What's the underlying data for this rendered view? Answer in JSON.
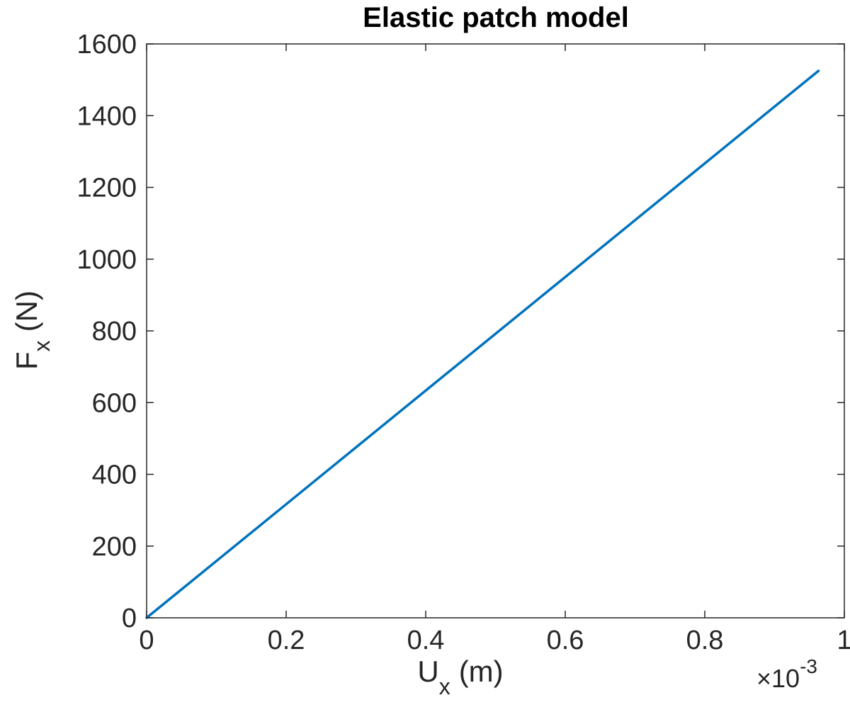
{
  "chart_data": {
    "type": "line",
    "title": "Elastic patch model",
    "xlabel": {
      "main": "U",
      "sub": "x",
      "unit": "(m)"
    },
    "ylabel": {
      "main": "F",
      "sub": "x",
      "unit": "(N)"
    },
    "x_multiplier": {
      "symbol": "×10",
      "exponent": "-3"
    },
    "xlim": [
      0,
      1
    ],
    "ylim": [
      0,
      1600
    ],
    "x_ticks": [
      0,
      0.2,
      0.4,
      0.6,
      0.8,
      1
    ],
    "x_tick_labels": [
      "0",
      "0.2",
      "0.4",
      "0.6",
      "0.8",
      "1"
    ],
    "y_ticks": [
      0,
      200,
      400,
      600,
      800,
      1000,
      1200,
      1400,
      1600
    ],
    "y_tick_labels": [
      "0",
      "200",
      "400",
      "600",
      "800",
      "1000",
      "1200",
      "1400",
      "1600"
    ],
    "grid": false,
    "box": true,
    "series": [
      {
        "x": [
          0,
          0.2,
          0.4,
          0.6,
          0.8,
          0.963
        ],
        "y": [
          0,
          316.7,
          633.5,
          950.2,
          1266.9,
          1525
        ],
        "color": "#0072BD"
      }
    ]
  }
}
